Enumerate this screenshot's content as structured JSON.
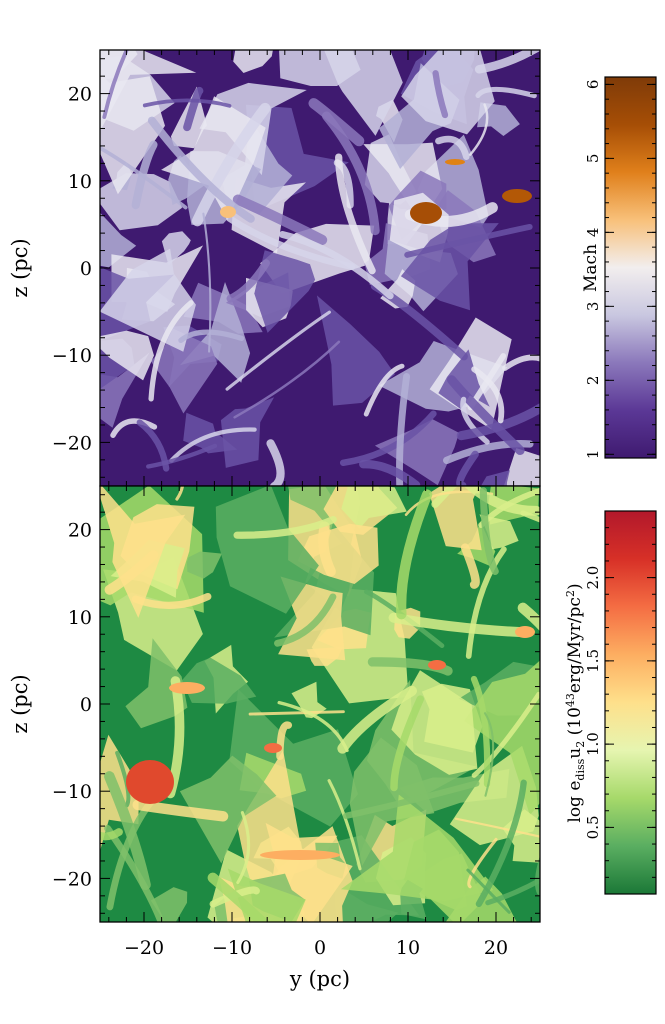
{
  "chart_data": [
    {
      "type": "heatmap",
      "panel": "top",
      "quantity": "Mach number",
      "xlabel": "",
      "ylabel": "z (pc)",
      "xlim": [
        -25,
        25
      ],
      "ylim": [
        -25,
        25
      ],
      "yticks": [
        {
          "value": 20,
          "label": "20"
        },
        {
          "value": 10,
          "label": "10"
        },
        {
          "value": 0,
          "label": "0"
        },
        {
          "value": -10,
          "label": "−10"
        },
        {
          "value": -20,
          "label": "−20"
        }
      ],
      "colormap": [
        "#3f1a70",
        "#5b3896",
        "#8b78bb",
        "#c9c7e0",
        "#f2eeee",
        "#f8c07a",
        "#e0801b",
        "#a64e06",
        "#7f3b08"
      ],
      "colorbar": {
        "label": "Mach",
        "range": [
          0.95,
          6.1
        ],
        "ticks": [
          {
            "value": 1,
            "label": "1"
          },
          {
            "value": 2,
            "label": "2"
          },
          {
            "value": 3,
            "label": "3"
          },
          {
            "value": 4,
            "label": "4"
          },
          {
            "value": 5,
            "label": "5"
          },
          {
            "value": 6,
            "label": "6"
          }
        ]
      }
    },
    {
      "type": "heatmap",
      "panel": "bottom",
      "quantity": "log energy dissipation",
      "xlabel": "y (pc)",
      "ylabel": "z (pc)",
      "xlim": [
        -25,
        25
      ],
      "ylim": [
        -25,
        25
      ],
      "xticks": [
        {
          "value": -20,
          "label": "−20"
        },
        {
          "value": -10,
          "label": "−10"
        },
        {
          "value": 0,
          "label": "0"
        },
        {
          "value": 10,
          "label": "10"
        },
        {
          "value": 20,
          "label": "20"
        }
      ],
      "yticks": [
        {
          "value": 20,
          "label": "20"
        },
        {
          "value": 10,
          "label": "10"
        },
        {
          "value": 0,
          "label": "0"
        },
        {
          "value": -10,
          "label": "−10"
        },
        {
          "value": -20,
          "label": "−20"
        }
      ],
      "colormap": [
        "#1b7837",
        "#5aae61",
        "#a6d96a",
        "#e6f5b0",
        "#fee08b",
        "#fdae61",
        "#f46d43",
        "#d73027",
        "#b2182b"
      ],
      "colorbar": {
        "label_main": "log e",
        "label_sub1": "diss",
        "label_mid": "u",
        "label_sub2": "2",
        "label_open": " (10",
        "label_sup1": "43",
        "label_unit": "erg/Myr/pc",
        "label_sup2": "2",
        "label_close": ")",
        "range": [
          0.1,
          2.4
        ],
        "ticks": [
          {
            "value": 0.5,
            "label": "0.5"
          },
          {
            "value": 1.0,
            "label": "1.0"
          },
          {
            "value": 1.5,
            "label": "1.5"
          },
          {
            "value": 2.0,
            "label": "2.0"
          }
        ]
      }
    }
  ]
}
